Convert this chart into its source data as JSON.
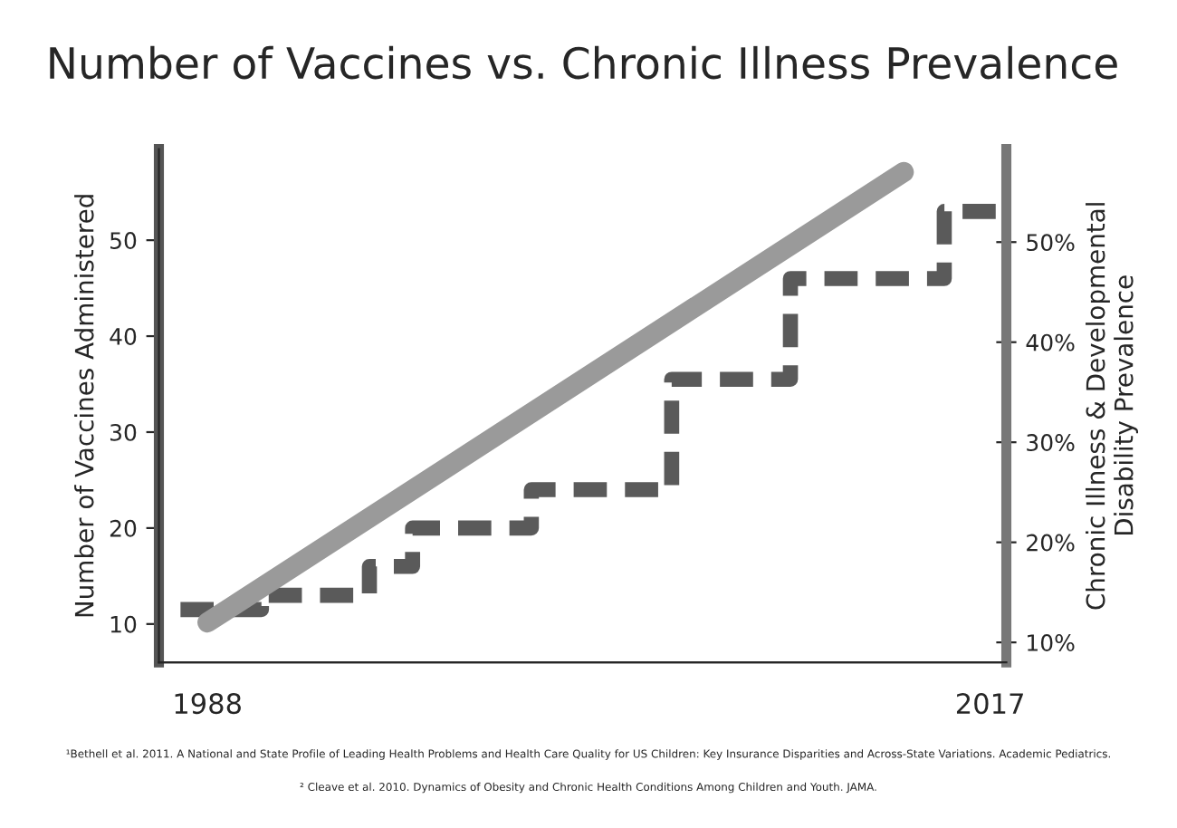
{
  "chart_data": {
    "type": "step",
    "title": "Number of Vaccines vs. Chronic Illness Prevalence",
    "ylabel": "Number of Vaccines Administered",
    "y2label": "Chronic Illness & Developmental\nDisability Prevalence",
    "series": [
      {
        "color": "#5a5a5a",
        "line_style": "dashed",
        "x": [
          1987,
          1990,
          1994,
          1995.6,
          2000,
          2005.2,
          2009.6,
          2015.3,
          2017.5
        ],
        "values": [
          11.5,
          13,
          16,
          20,
          24,
          35.5,
          46,
          53,
          53
        ]
      },
      {
        "type": "line",
        "axis": "y2",
        "color": "#9a9a9a",
        "line_style": "solid",
        "x": [
          1988,
          2013.8
        ],
        "values": [
          12,
          57
        ]
      }
    ],
    "xlim": [
      1986.2,
      2017.6
    ],
    "xticks": [
      1988,
      2017
    ],
    "ylim": [
      6,
      59.5
    ],
    "yticks": [
      10,
      20,
      30,
      40,
      50
    ],
    "y2lim": [
      8,
      59.3
    ],
    "y2ticks": [
      {
        "value": 10,
        "label": "10%"
      },
      {
        "value": 20,
        "label": "20%"
      },
      {
        "value": 30,
        "label": "30%"
      },
      {
        "value": 40,
        "label": "40%"
      },
      {
        "value": 50,
        "label": "50%"
      }
    ],
    "grid": false,
    "legend": false,
    "annotations": [
      "¹Bethell et al. 2011. A National and State Profile of Leading Health Problems and Health Care Quality for US Children: Key Insurance Disparities and Across-State Variations. Academic Pediatrics.",
      "² Cleave et al. 2010. Dynamics of Obesity and Chronic Health Conditions Among Children and Youth. JAMA."
    ]
  }
}
